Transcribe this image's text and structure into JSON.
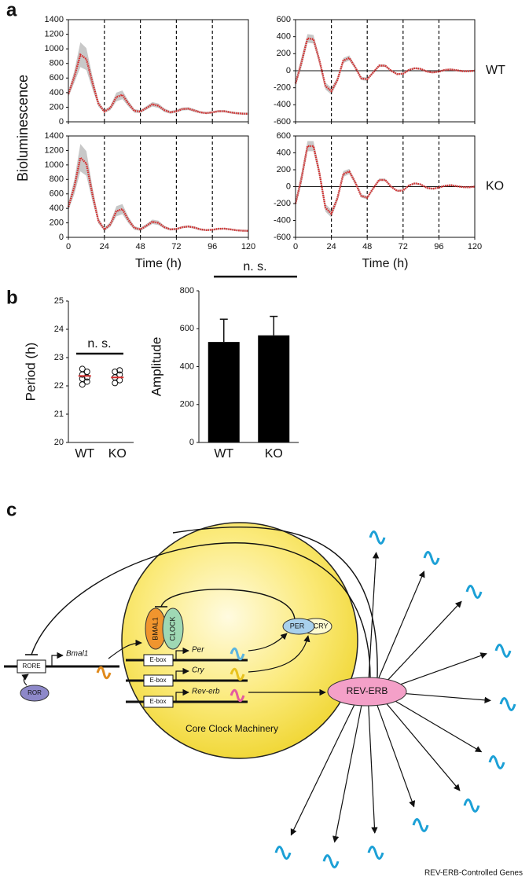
{
  "panel_labels": [
    "a",
    "b",
    "c"
  ],
  "chart_data": [
    {
      "type": "line",
      "ylabel": "Bioluminescence",
      "xlim": [
        0,
        120
      ],
      "xticks": [
        0,
        24,
        48,
        72,
        96,
        120
      ],
      "xtick_labels": false,
      "ylim": [
        0,
        1400
      ],
      "yticks": [
        0,
        200,
        400,
        600,
        800,
        1000,
        1200,
        1400
      ],
      "dashed_vlines": true,
      "zero_line": false,
      "band_color": "#c8c8c8",
      "x": [
        0,
        4,
        8,
        12,
        16,
        20,
        24,
        28,
        32,
        36,
        40,
        44,
        48,
        52,
        56,
        60,
        64,
        68,
        72,
        76,
        80,
        84,
        88,
        92,
        96,
        100,
        104,
        108,
        112,
        116,
        120
      ],
      "series": [
        {
          "color": "#d62d2d",
          "values": [
            380,
            620,
            920,
            860,
            540,
            250,
            140,
            190,
            340,
            370,
            250,
            150,
            140,
            190,
            240,
            220,
            160,
            130,
            145,
            175,
            180,
            155,
            130,
            120,
            130,
            145,
            145,
            130,
            118,
            112,
            110
          ],
          "sd": [
            40,
            80,
            170,
            150,
            90,
            40,
            20,
            30,
            60,
            60,
            40,
            25,
            20,
            25,
            30,
            30,
            25,
            20,
            20,
            20,
            20,
            20,
            15,
            15,
            15,
            15,
            15,
            15,
            15,
            15,
            15
          ]
        }
      ]
    },
    {
      "type": "line",
      "label": "WT",
      "xlim": [
        0,
        120
      ],
      "xticks": [
        0,
        24,
        48,
        72,
        96,
        120
      ],
      "xtick_labels": false,
      "ylim": [
        -600,
        600
      ],
      "yticks": [
        -600,
        -400,
        -200,
        0,
        200,
        400,
        600
      ],
      "dashed_vlines": true,
      "zero_line": true,
      "band_color": "#c8c8c8",
      "x": [
        0,
        4,
        8,
        12,
        16,
        20,
        24,
        28,
        32,
        36,
        40,
        44,
        48,
        52,
        56,
        60,
        64,
        68,
        72,
        76,
        80,
        84,
        88,
        92,
        96,
        100,
        104,
        108,
        112,
        116,
        120
      ],
      "series": [
        {
          "color": "#d62d2d",
          "values": [
            -150,
            100,
            380,
            370,
            120,
            -180,
            -240,
            -110,
            120,
            150,
            40,
            -90,
            -100,
            -20,
            60,
            60,
            0,
            -40,
            -35,
            10,
            30,
            20,
            -10,
            -20,
            -10,
            10,
            15,
            5,
            -5,
            -5,
            0
          ],
          "sd": [
            30,
            60,
            50,
            50,
            40,
            40,
            40,
            30,
            30,
            30,
            20,
            20,
            20,
            15,
            15,
            15,
            10,
            10,
            10,
            10,
            10,
            10,
            10,
            10,
            10,
            10,
            10,
            10,
            10,
            10,
            10
          ]
        }
      ]
    },
    {
      "type": "line",
      "xlabel": "Time (h)",
      "xlim": [
        0,
        120
      ],
      "xticks": [
        0,
        24,
        48,
        72,
        96,
        120
      ],
      "xtick_labels": true,
      "ylim": [
        0,
        1400
      ],
      "yticks": [
        0,
        200,
        400,
        600,
        800,
        1000,
        1200,
        1400
      ],
      "dashed_vlines": true,
      "zero_line": false,
      "band_color": "#c8c8c8",
      "x": [
        0,
        4,
        8,
        12,
        16,
        20,
        24,
        28,
        32,
        36,
        40,
        44,
        48,
        52,
        56,
        60,
        64,
        68,
        72,
        76,
        80,
        84,
        88,
        92,
        96,
        100,
        104,
        108,
        112,
        116,
        120
      ],
      "series": [
        {
          "color": "#d62d2d",
          "values": [
            420,
            700,
            1100,
            1020,
            600,
            230,
            110,
            180,
            360,
            390,
            240,
            130,
            110,
            160,
            215,
            200,
            140,
            110,
            115,
            140,
            150,
            135,
            110,
            100,
            105,
            118,
            120,
            110,
            98,
            92,
            90
          ],
          "sd": [
            50,
            100,
            190,
            170,
            100,
            40,
            20,
            35,
            70,
            70,
            45,
            25,
            20,
            25,
            30,
            30,
            20,
            15,
            15,
            15,
            15,
            15,
            15,
            12,
            12,
            12,
            12,
            12,
            12,
            12,
            12
          ]
        }
      ]
    },
    {
      "type": "line",
      "label": "KO",
      "xlabel": "Time (h)",
      "xlim": [
        0,
        120
      ],
      "xticks": [
        0,
        24,
        48,
        72,
        96,
        120
      ],
      "xtick_labels": true,
      "ylim": [
        -600,
        600
      ],
      "yticks": [
        -600,
        -400,
        -200,
        0,
        200,
        400,
        600
      ],
      "dashed_vlines": true,
      "zero_line": true,
      "band_color": "#c8c8c8",
      "x": [
        0,
        4,
        8,
        12,
        16,
        20,
        24,
        28,
        32,
        36,
        40,
        44,
        48,
        52,
        56,
        60,
        64,
        68,
        72,
        76,
        80,
        84,
        88,
        92,
        96,
        100,
        104,
        108,
        112,
        116,
        120
      ],
      "series": [
        {
          "color": "#d62d2d",
          "values": [
            -200,
            100,
            480,
            480,
            160,
            -250,
            -320,
            -140,
            150,
            180,
            50,
            -110,
            -130,
            -20,
            80,
            80,
            0,
            -50,
            -45,
            15,
            40,
            25,
            -15,
            -25,
            -10,
            10,
            18,
            5,
            -5,
            -8,
            0
          ],
          "sd": [
            35,
            70,
            60,
            60,
            50,
            45,
            45,
            35,
            35,
            30,
            25,
            20,
            20,
            15,
            15,
            15,
            10,
            10,
            10,
            10,
            10,
            10,
            10,
            10,
            10,
            10,
            10,
            10,
            10,
            10,
            10
          ]
        }
      ]
    },
    {
      "type": "dot",
      "ylabel": "Period (h)",
      "annotation": "n. s.",
      "categories": [
        "WT",
        "KO"
      ],
      "ylim": [
        20,
        25
      ],
      "yticks": [
        20,
        21,
        22,
        23,
        24,
        25
      ],
      "mean_color": "#d62d2d",
      "points": [
        [
          22.05,
          22.15,
          22.25,
          22.3,
          22.4,
          22.5,
          22.6
        ],
        [
          22.1,
          22.2,
          22.3,
          22.4,
          22.5,
          22.55
        ]
      ],
      "means": [
        22.35,
        22.3
      ]
    },
    {
      "type": "bar",
      "ylabel": "Amplitude",
      "annotation": "n. s.",
      "categories": [
        "WT",
        "KO"
      ],
      "color": "#000000",
      "ylim": [
        0,
        800
      ],
      "yticks": [
        0,
        200,
        400,
        600,
        800
      ],
      "values": [
        530,
        565
      ],
      "errors": [
        120,
        100
      ]
    }
  ],
  "diagram": {
    "rore": "RORE",
    "bmal1_gene": "Bmal1",
    "ror": "ROR",
    "bmal1": "BMAL1",
    "clock": "CLOCK",
    "ebox": [
      "E-box",
      "E-box",
      "E-box"
    ],
    "per_gene": "Per",
    "cry_gene": "Cry",
    "reverb_gene": "Rev-erb",
    "per": "PER",
    "cry": "CRY",
    "reverb": "REV-ERB",
    "machinery": "Core Clock Machinery",
    "targets": "REV-ERB-Controlled Genes"
  }
}
